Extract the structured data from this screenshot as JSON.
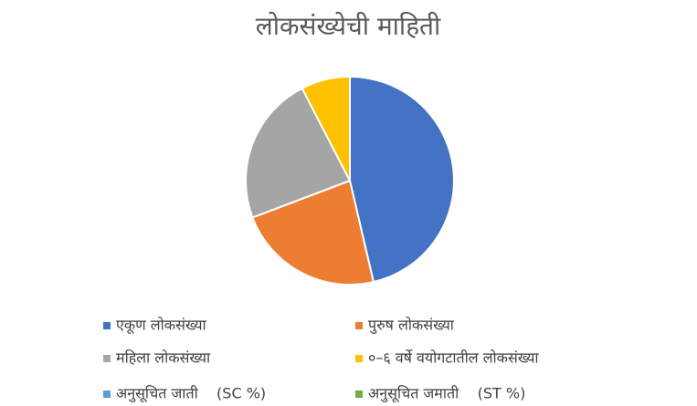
{
  "chart_data": {
    "type": "pie",
    "title": "लोकसंख्येची माहिती",
    "categories": [
      "एकूण लोकसंख्या",
      "पुरुष लोकसंख्या",
      "महिला लोकसंख्या",
      "०–६ वर्षे वयोगटातील लोकसंख्या",
      "अनुसूचित जाती    (SC %)",
      "अनुसूचित जमाती    (ST %)"
    ],
    "values": [
      46.4,
      22.9,
      23.2,
      7.6,
      0,
      0
    ],
    "colors": [
      "#4472c4",
      "#ed7d31",
      "#a5a5a5",
      "#ffc000",
      "#5b9bd5",
      "#70ad47"
    ],
    "legend": "bottom"
  }
}
